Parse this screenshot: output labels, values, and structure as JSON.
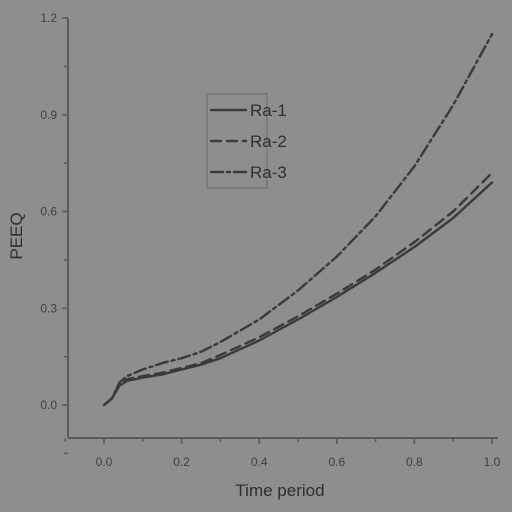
{
  "chart_data": {
    "type": "line",
    "xlabel": "Time period",
    "ylabel": "PEEQ",
    "xlim": [
      -0.1,
      1.0
    ],
    "ylim": [
      -0.1,
      1.2
    ],
    "xticks": [
      "0.0",
      "0.2",
      "0.4",
      "0.6",
      "0.8",
      "1.0"
    ],
    "yticks": [
      "0.0",
      "0.3",
      "0.6",
      "0.9",
      "1.2"
    ],
    "grid": false,
    "legend_position": "upper-center",
    "series": [
      {
        "name": "Ra-1",
        "style": "solid",
        "x": [
          0.0,
          0.02,
          0.04,
          0.06,
          0.1,
          0.15,
          0.2,
          0.25,
          0.3,
          0.4,
          0.5,
          0.6,
          0.7,
          0.8,
          0.9,
          1.0
        ],
        "y": [
          0.0,
          0.02,
          0.06,
          0.075,
          0.085,
          0.095,
          0.11,
          0.125,
          0.145,
          0.2,
          0.265,
          0.335,
          0.41,
          0.49,
          0.58,
          0.69
        ]
      },
      {
        "name": "Ra-2",
        "style": "dashed",
        "x": [
          0.0,
          0.02,
          0.04,
          0.06,
          0.1,
          0.15,
          0.2,
          0.25,
          0.3,
          0.4,
          0.5,
          0.6,
          0.7,
          0.8,
          0.9,
          1.0
        ],
        "y": [
          0.0,
          0.02,
          0.065,
          0.08,
          0.09,
          0.1,
          0.115,
          0.13,
          0.155,
          0.21,
          0.275,
          0.345,
          0.42,
          0.505,
          0.6,
          0.72
        ]
      },
      {
        "name": "Ra-3",
        "style": "dash-dot",
        "x": [
          0.0,
          0.02,
          0.04,
          0.06,
          0.1,
          0.15,
          0.2,
          0.25,
          0.3,
          0.4,
          0.5,
          0.6,
          0.7,
          0.8,
          0.9,
          1.0
        ],
        "y": [
          0.0,
          0.02,
          0.07,
          0.09,
          0.11,
          0.13,
          0.145,
          0.165,
          0.195,
          0.265,
          0.355,
          0.46,
          0.585,
          0.74,
          0.93,
          1.15
        ]
      }
    ]
  },
  "colors": {
    "background": "#8e8e8e",
    "ink": "#3a3a3a"
  }
}
